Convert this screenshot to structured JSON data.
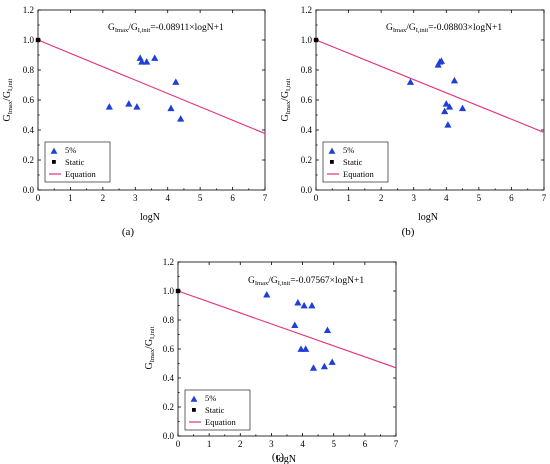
{
  "chart_data": [
    {
      "type": "scatter",
      "panel": "(a)",
      "xlabel": "logN",
      "ylabel_main": "G",
      "ylabel_sub1": "Imax",
      "ylabel_mid": "/G",
      "ylabel_sub2": "I,init",
      "equation_prefix": "G",
      "equation_sub1": "Imax",
      "equation_mid": "/G",
      "equation_sub2": "I,init",
      "equation_rest": "=-0.08911×logN+1",
      "xlim": [
        0,
        7
      ],
      "ylim": [
        0,
        1.2
      ],
      "xticks": [
        0,
        1,
        2,
        3,
        4,
        5,
        6,
        7
      ],
      "yticks": [
        0.0,
        0.2,
        0.4,
        0.6,
        0.8,
        1.0,
        1.2
      ],
      "colors": {
        "series": "#1f3fd6",
        "equation": "#e8307a",
        "static": "#000000"
      },
      "series": [
        {
          "name": "5%",
          "x": [
            2.2,
            2.8,
            3.05,
            3.15,
            3.2,
            3.35,
            3.6,
            4.1,
            4.25,
            4.4
          ],
          "y": [
            0.555,
            0.575,
            0.555,
            0.88,
            0.855,
            0.855,
            0.88,
            0.545,
            0.72,
            0.475
          ]
        },
        {
          "name": "Static",
          "x": [
            0
          ],
          "y": [
            1.0
          ]
        }
      ],
      "equation": {
        "name": "Equation",
        "slope": -0.08911,
        "intercept": 1
      },
      "legend_labels": [
        "5%",
        "Static",
        "Equation"
      ]
    },
    {
      "type": "scatter",
      "panel": "(b)",
      "xlabel": "logN",
      "ylabel_main": "G",
      "ylabel_sub1": "Imax",
      "ylabel_mid": "/G",
      "ylabel_sub2": "I,init",
      "equation_prefix": "G",
      "equation_sub1": "Imax",
      "equation_mid": "/G",
      "equation_sub2": "I,init",
      "equation_rest": "=-0.08803×logN+1",
      "xlim": [
        0,
        7
      ],
      "ylim": [
        0,
        1.2
      ],
      "xticks": [
        0,
        1,
        2,
        3,
        4,
        5,
        6,
        7
      ],
      "yticks": [
        0.0,
        0.2,
        0.4,
        0.6,
        0.8,
        1.0,
        1.2
      ],
      "colors": {
        "series": "#1f3fd6",
        "equation": "#e8307a",
        "static": "#000000"
      },
      "series": [
        {
          "name": "5%",
          "x": [
            2.9,
            3.75,
            3.8,
            3.85,
            3.95,
            4.0,
            4.05,
            4.1,
            4.25,
            4.5
          ],
          "y": [
            0.72,
            0.835,
            0.855,
            0.86,
            0.525,
            0.575,
            0.435,
            0.555,
            0.73,
            0.545
          ]
        },
        {
          "name": "Static",
          "x": [
            0
          ],
          "y": [
            1.0
          ]
        }
      ],
      "equation": {
        "name": "Equation",
        "slope": -0.08803,
        "intercept": 1
      },
      "legend_labels": [
        "5%",
        "Static",
        "Equation"
      ]
    },
    {
      "type": "scatter",
      "panel": "(c)",
      "xlabel": "logN",
      "ylabel_main": "G",
      "ylabel_sub1": "Imax",
      "ylabel_mid": "/G",
      "ylabel_sub2": "I,init",
      "equation_prefix": "G",
      "equation_sub1": "Imax",
      "equation_mid": "/G",
      "equation_sub2": "I,init",
      "equation_rest": "=-0.07567×logN+1",
      "xlim": [
        0,
        7
      ],
      "ylim": [
        0,
        1.2
      ],
      "xticks": [
        0,
        1,
        2,
        3,
        4,
        5,
        6,
        7
      ],
      "yticks": [
        0.0,
        0.2,
        0.4,
        0.6,
        0.8,
        1.0,
        1.2
      ],
      "colors": {
        "series": "#1f3fd6",
        "equation": "#e8307a",
        "static": "#000000"
      },
      "series": [
        {
          "name": "5%",
          "x": [
            2.85,
            3.75,
            3.85,
            3.95,
            4.05,
            4.1,
            4.3,
            4.35,
            4.7,
            4.8,
            4.95
          ],
          "y": [
            0.975,
            0.765,
            0.92,
            0.6,
            0.9,
            0.6,
            0.9,
            0.47,
            0.48,
            0.73,
            0.51
          ]
        },
        {
          "name": "Static",
          "x": [
            0
          ],
          "y": [
            1.0
          ]
        }
      ],
      "equation": {
        "name": "Equation",
        "slope": -0.07567,
        "intercept": 1
      },
      "legend_labels": [
        "5%",
        "Static",
        "Equation"
      ]
    }
  ]
}
